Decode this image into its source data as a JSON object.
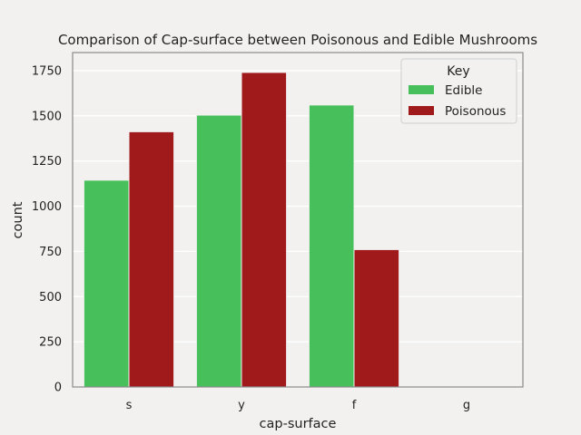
{
  "chart_data": {
    "type": "bar",
    "title": "Comparison of Cap-surface between Poisonous and Edible Mushrooms",
    "xlabel": "cap-surface",
    "ylabel": "count",
    "categories": [
      "s",
      "y",
      "f",
      "g"
    ],
    "series": [
      {
        "name": "Edible",
        "color": "#47c05c",
        "values": [
          1144,
          1504,
          1560,
          0
        ]
      },
      {
        "name": "Poisonous",
        "color": "#a01a1c",
        "values": [
          1412,
          1740,
          760,
          4
        ]
      }
    ],
    "ylim": [
      0,
      1850
    ],
    "yticks": [
      0,
      250,
      500,
      750,
      1000,
      1250,
      1500,
      1750
    ],
    "grid": true,
    "legend": {
      "title": "Key",
      "position": "top-right"
    }
  }
}
